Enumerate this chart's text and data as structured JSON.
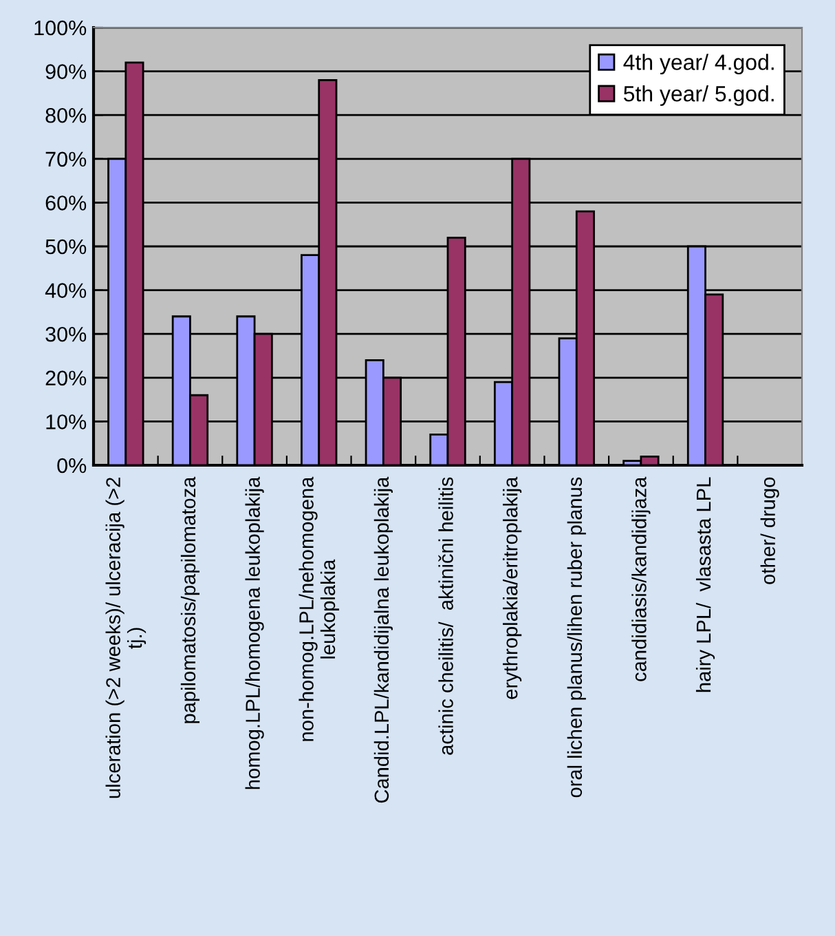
{
  "chart_data": {
    "type": "bar",
    "categories": [
      "ulceration (>2 weeks)/ ulceracija (>2\ntj.)",
      "papilomatosis/papilomatoza",
      "homog.LPL/homogena leukoplakija",
      "non-homog.LPL/nehomogena\nleukoplakia",
      "Candid.LPL/kandidijalna leukoplakija",
      "actinic cheilitis/  aktinični heilitis",
      "erythroplakia/eritroplakija",
      "oral lichen planus/lihen ruber planus",
      "candidiasis/kandidijaza",
      "hairy LPL/  vlasasta LPL",
      "other/ drugo"
    ],
    "series": [
      {
        "name": "4th year/ 4.god.",
        "color": "#9999ff",
        "values": [
          70,
          34,
          34,
          48,
          24,
          7,
          19,
          29,
          1,
          50,
          null
        ]
      },
      {
        "name": "5th year/ 5.god.",
        "color": "#993366",
        "values": [
          92,
          16,
          30,
          88,
          20,
          52,
          70,
          58,
          2,
          39,
          null
        ]
      }
    ],
    "ylim": [
      0,
      100
    ],
    "yticks": [
      {
        "value": 0,
        "label": "0%"
      },
      {
        "value": 10,
        "label": "10%"
      },
      {
        "value": 20,
        "label": "20%"
      },
      {
        "value": 30,
        "label": "30%"
      },
      {
        "value": 40,
        "label": "40%"
      },
      {
        "value": 50,
        "label": "50%"
      },
      {
        "value": 60,
        "label": "60%"
      },
      {
        "value": 70,
        "label": "70%"
      },
      {
        "value": 80,
        "label": "80%"
      },
      {
        "value": 90,
        "label": "90%"
      },
      {
        "value": 100,
        "label": "100%"
      }
    ],
    "grid": "y",
    "legend": "top right"
  }
}
